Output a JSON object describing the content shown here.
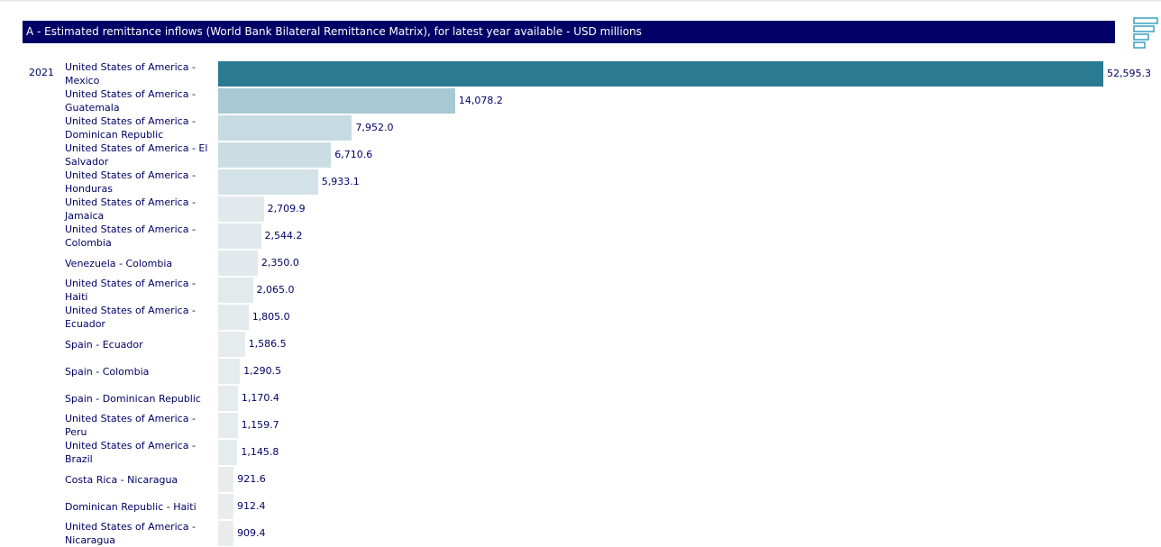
{
  "chart_data": {
    "type": "bar",
    "orientation": "horizontal",
    "title": "A - Estimated remittance inflows (World Bank Bilateral Remittance Matrix), for latest year available - USD millions",
    "period": "2021",
    "categories": [
      "United States of America - Mexico",
      "United States of America - Guatemala",
      "United States of America - Dominican Republic",
      "United States of America - El Salvador",
      "United States of America - Honduras",
      "United States of America - Jamaica",
      "United States of America - Colombia",
      "Venezuela - Colombia",
      "United States of America - Haiti",
      "United States of America - Ecuador",
      "Spain - Ecuador",
      "Spain - Colombia",
      "Spain - Dominican Republic",
      "United States of America - Peru",
      "United States of America - Brazil",
      "Costa Rica - Nicaragua",
      "Dominican Republic - Haiti",
      "United States of America - Nicaragua"
    ],
    "values": [
      52595.3,
      14078.2,
      7952.0,
      6710.6,
      5933.1,
      2709.9,
      2544.2,
      2350.0,
      2065.0,
      1805.0,
      1586.5,
      1290.5,
      1170.4,
      1159.7,
      1145.8,
      921.6,
      912.4,
      909.4
    ],
    "value_labels": [
      "52,595.3",
      "14,078.2",
      "7,952.0",
      "6,710.6",
      "5,933.1",
      "2,709.9",
      "2,544.2",
      "2,350.0",
      "2,065.0",
      "1,805.0",
      "1,586.5",
      "1,290.5",
      "1,170.4",
      "1,159.7",
      "1,145.8",
      "921.6",
      "912.4",
      "909.4"
    ],
    "colors": [
      "#2a7a92",
      "#a8c9d4",
      "#c6dbe1",
      "#c9dde3",
      "#d2e2e7",
      "#e2e9ec",
      "#e2e9ec",
      "#e2e9ec",
      "#e3eaec",
      "#e3eaec",
      "#e6ebed",
      "#e6ebed",
      "#e6ebed",
      "#e6ebed",
      "#e6ebed",
      "#e8eced",
      "#e8eced",
      "#e8eced"
    ]
  }
}
